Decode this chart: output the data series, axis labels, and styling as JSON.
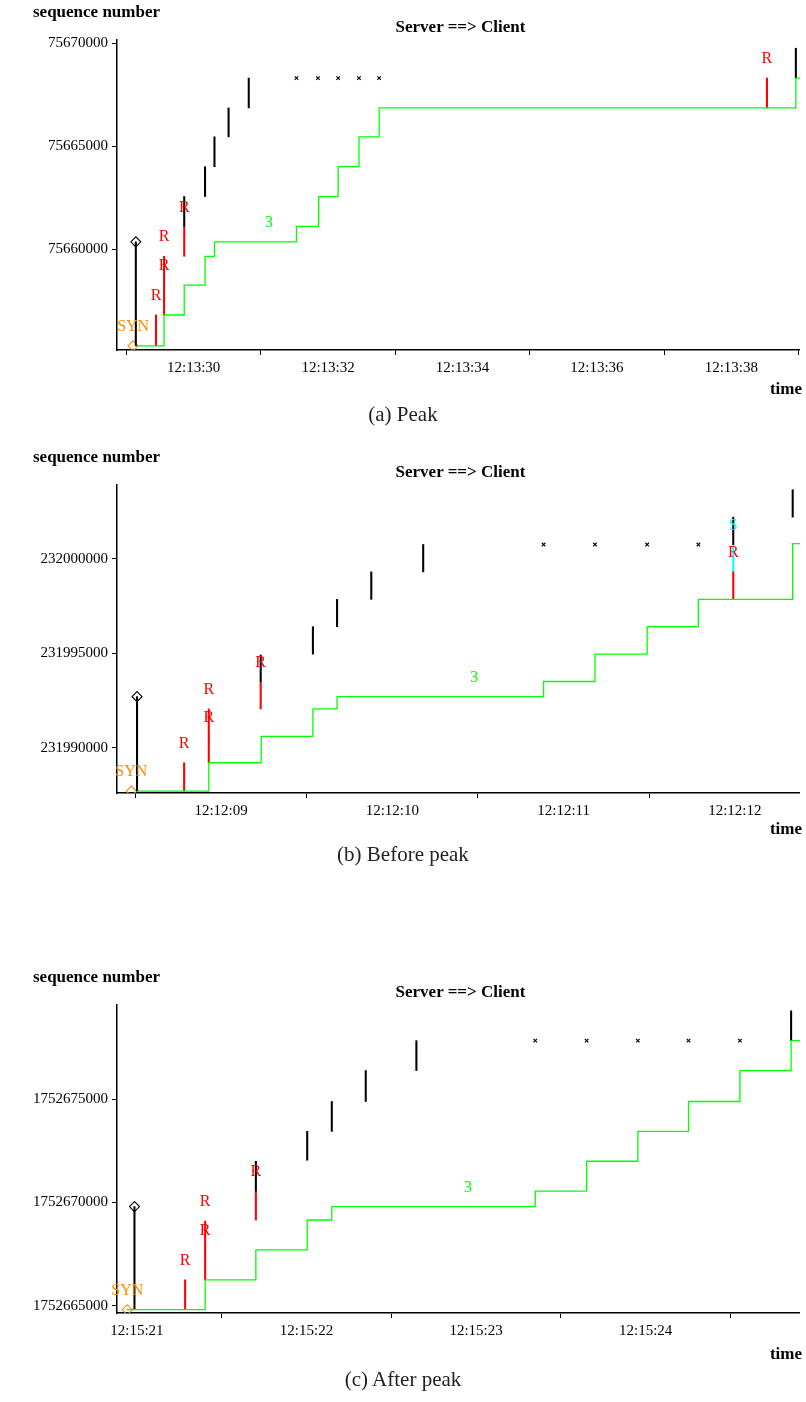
{
  "chart_data": [
    {
      "type": "step",
      "title": "Server ==> Client",
      "xlabel": "time",
      "ylabel": "sequence number",
      "annotations": [
        "(a) Peak",
        {
          "text": "SYN",
          "x": 12.22475,
          "y": 75655300
        },
        {
          "text": "R",
          "x": 12.2248444,
          "y": 75656800
        },
        {
          "text": "R",
          "x": 12.2248778,
          "y": 75658250
        },
        {
          "text": "R",
          "x": 12.2248778,
          "y": 75659650
        },
        {
          "text": "R",
          "x": 12.2249611,
          "y": 75661100
        },
        {
          "text": "R",
          "x": 12.2273694,
          "y": 75668300
        },
        {
          "text": "3",
          "x": 12.2253111,
          "y": 75660350
        }
      ],
      "xlim": [
        12.2246833,
        12.2275056
      ],
      "xticks": [
        {
          "value": 12.225,
          "label": "12:13:30"
        },
        {
          "value": 12.2255556,
          "label": "12:13:32"
        },
        {
          "value": 12.2261111,
          "label": "12:13:34"
        },
        {
          "value": 12.2266667,
          "label": "12:13:36"
        },
        {
          "value": 12.2272222,
          "label": "12:13:38"
        }
      ],
      "ylim": [
        75655100,
        75670150
      ],
      "yticks": [
        75660000,
        75665000,
        75670000
      ],
      "series": [
        {
          "color": "#00ff00",
          "x": [
            12.2247667,
            12.2248778,
            12.2249611,
            12.2250472,
            12.2250861,
            12.2251444,
            12.2252278,
            12.2253111,
            12.225425,
            12.2255167,
            12.2255972,
            12.2256833,
            12.2257667,
            12.2274889,
            12.2275056
          ],
          "values": [
            75655300,
            75656800,
            75658250,
            75659650,
            75660350,
            75660350,
            75660350,
            75660350,
            75661100,
            75662550,
            75664000,
            75665450,
            75666850,
            75668300,
            75668300
          ]
        },
        {
          "type": "bar",
          "color": "#000000",
          "x": [
            12.2247611,
            12.2249611,
            12.2250472,
            12.2250861,
            12.2251444,
            12.2252278,
            12.2274889
          ],
          "base": [
            75655300,
            75661100,
            75662550,
            75664000,
            75665450,
            75666850,
            75668300
          ],
          "values": [
            5050,
            1450,
            1450,
            1450,
            1400,
            1450,
            1450
          ]
        },
        {
          "type": "bar",
          "color": "#ff0000",
          "x": [
            12.2248444,
            12.2248778,
            12.2249611,
            12.2273694
          ],
          "base": [
            75655300,
            75656800,
            75659650,
            75666850
          ],
          "values": [
            1500,
            1450,
            1450,
            1450
          ]
        },
        {
          "type": "bar",
          "color": "#ff0000",
          "x": [
            12.2248778
          ],
          "base": [
            75658250
          ],
          "values": [
            1400
          ]
        },
        {
          "type": "scatter",
          "marker": "cross",
          "color": "#000000",
          "x": [
            12.225425,
            12.2255139,
            12.2255972,
            12.2256833,
            12.2257667
          ],
          "values": [
            75668300,
            75668300,
            75668300,
            75668300,
            75668300
          ]
        },
        {
          "type": "scatter",
          "marker": "diamond",
          "color": "#000000",
          "x": [
            12.2247611
          ],
          "values": [
            75660350
          ]
        },
        {
          "type": "scatter",
          "marker": "diamond",
          "color": "#ff8c00",
          "x": [
            12.22475
          ],
          "values": [
            75655300
          ]
        }
      ]
    },
    {
      "type": "step",
      "title": "Server ==> Client",
      "xlabel": "time",
      "ylabel": "sequence number",
      "annotations": [
        "(b) Before peak",
        {
          "text": "SYN",
          "x": 12.2023544,
          "y": 231987700
        },
        {
          "text": "R",
          "x": 12.20244,
          "y": 231989200
        },
        {
          "text": "R",
          "x": 12.20248,
          "y": 231990600
        },
        {
          "text": "R",
          "x": 12.20248,
          "y": 231992050
        },
        {
          "text": "R",
          "x": 12.2025642,
          "y": 231993500
        },
        {
          "text": "R",
          "x": 12.2033308,
          "y": 231999300
        },
        {
          "text": "S",
          "x": 12.2033308,
          "y": 232000750
        },
        {
          "text": "3",
          "x": 12.2029108,
          "y": 231992700
        }
      ],
      "xlim": [
        12.2023311,
        12.2034389
      ],
      "xticks": [
        {
          "value": 12.2025,
          "label": "12:12:09"
        },
        {
          "value": 12.2027778,
          "label": "12:12:10"
        },
        {
          "value": 12.2030556,
          "label": "12:12:11"
        },
        {
          "value": 12.2033333,
          "label": "12:12:12"
        }
      ],
      "ylim": [
        231987600,
        232003900
      ],
      "yticks": [
        231990000,
        231995000,
        232000000
      ],
      "series": [
        {
          "color": "#00ff00",
          "x": [
            12.2023644,
            12.20248,
            12.202565,
            12.2026489,
            12.2026881,
            12.2027436,
            12.2028278,
            12.2029108,
            12.2030231,
            12.2031064,
            12.2031911,
            12.2032742,
            12.2034272,
            12.2034389
          ],
          "values": [
            231987700,
            231989200,
            231990600,
            231992050,
            231992700,
            231992700,
            231992700,
            231992700,
            231993500,
            231994950,
            231996400,
            231997850,
            232000800,
            232000800
          ]
        },
        {
          "type": "bar",
          "color": "#000000",
          "x": [
            12.2023636,
            12.2025642,
            12.2026489,
            12.2026881,
            12.2027436,
            12.2028278,
            12.2033308,
            12.2034272
          ],
          "base": [
            231987700,
            231993500,
            231994950,
            231996400,
            231997850,
            231999300,
            232000750,
            232002200
          ],
          "values": [
            5000,
            1400,
            1450,
            1450,
            1450,
            1450,
            1450,
            1450
          ]
        },
        {
          "type": "bar",
          "color": "#ff0000",
          "x": [
            12.20244,
            12.20248,
            12.2025642,
            12.2033308
          ],
          "base": [
            231987700,
            231989200,
            231992050,
            231997850
          ],
          "values": [
            1500,
            1400,
            1450,
            1450
          ]
        },
        {
          "type": "bar",
          "color": "#ff0000",
          "x": [
            12.20248
          ],
          "base": [
            231990600
          ],
          "values": [
            1450
          ]
        },
        {
          "type": "bar",
          "color": "#00ffff",
          "x": [
            12.2033308
          ],
          "base": [
            231999300
          ],
          "values": [
            1450
          ]
        },
        {
          "type": "scatter",
          "marker": "cross",
          "color": "#000000",
          "x": [
            12.2030231,
            12.2031064,
            12.2031911,
            12.2032742
          ],
          "values": [
            232000750,
            232000750,
            232000750,
            232000750
          ]
        },
        {
          "type": "scatter",
          "marker": "diamond",
          "color": "#000000",
          "x": [
            12.2023636
          ],
          "values": [
            231992700
          ]
        },
        {
          "type": "scatter",
          "marker": "diamond",
          "color": "#ff8c00",
          "x": [
            12.2023544
          ],
          "values": [
            231987700
          ]
        }
      ]
    },
    {
      "type": "step",
      "title": "Server ==> Client",
      "xlabel": "time",
      "ylabel": "sequence number",
      "annotations": [
        "(c) After peak",
        {
          "text": "SYN",
          "x": 12.2558175,
          "y": 1752664800
        },
        {
          "text": "R",
          "x": 12.2559122,
          "y": 1752666250
        },
        {
          "text": "R",
          "x": 12.255945,
          "y": 1752667700
        },
        {
          "text": "R",
          "x": 12.255945,
          "y": 1752669100
        },
        {
          "text": "R",
          "x": 12.2560281,
          "y": 1752670550
        },
        {
          "text": "3",
          "x": 12.2563756,
          "y": 1752669800
        }
      ],
      "xlim": [
        12.2558006,
        12.2569194
      ],
      "xticks": [
        {
          "value": 12.2558333,
          "label": "12:15:21"
        },
        {
          "value": 12.2561111,
          "label": "12:15:22"
        },
        {
          "value": 12.2563889,
          "label": "12:15:23"
        },
        {
          "value": 12.2566667,
          "label": "12:15:24"
        }
      ],
      "ylim": [
        1752664640,
        1752679580
      ],
      "yticks": [
        1752665000,
        1752670000,
        1752675000
      ],
      "series": [
        {
          "color": "#00ff00",
          "x": [
            12.2558167,
            12.255945,
            12.2560281,
            12.2561122,
            12.2561525,
            12.2562081,
            12.2562911,
            12.2563756,
            12.2564858,
            12.25657,
            12.2566539,
            12.2567369,
            12.2568211,
            12.256905,
            12.2569194
          ],
          "values": [
            1752664800,
            1752666250,
            1752667700,
            1752669150,
            1752669800,
            1752669800,
            1752669800,
            1752669800,
            1752670550,
            1752672000,
            1752673450,
            1752674900,
            1752676400,
            1752677850,
            1752677850
          ]
        },
        {
          "type": "bar",
          "color": "#000000",
          "x": [
            12.2558292,
            12.2560281,
            12.2561122,
            12.2561525,
            12.2562081,
            12.2562911,
            12.256905
          ],
          "base": [
            1752664800,
            1752670550,
            1752672050,
            1752673450,
            1752674900,
            1752676400,
            1752677850
          ],
          "values": [
            5000,
            1450,
            1400,
            1450,
            1500,
            1450,
            1450
          ]
        },
        {
          "type": "bar",
          "color": "#ff0000",
          "x": [
            12.2559122,
            12.255945,
            12.2560281
          ],
          "base": [
            1752664800,
            1752666250,
            1752669150
          ],
          "values": [
            1450,
            1450,
            1400
          ]
        },
        {
          "type": "bar",
          "color": "#ff0000",
          "x": [
            12.255945
          ],
          "base": [
            1752667700
          ],
          "values": [
            1400
          ]
        },
        {
          "type": "scatter",
          "marker": "cross",
          "color": "#000000",
          "x": [
            12.2564858,
            12.25657,
            12.2566539,
            12.2567369,
            12.2568211
          ],
          "values": [
            1752677850,
            1752677850,
            1752677850,
            1752677850,
            1752677850
          ]
        },
        {
          "type": "scatter",
          "marker": "diamond",
          "color": "#000000",
          "x": [
            12.2558292
          ],
          "values": [
            1752669800
          ]
        },
        {
          "type": "scatter",
          "marker": "diamond",
          "color": "#ff8c00",
          "x": [
            12.2558175
          ],
          "values": [
            1752664800
          ]
        }
      ]
    }
  ]
}
